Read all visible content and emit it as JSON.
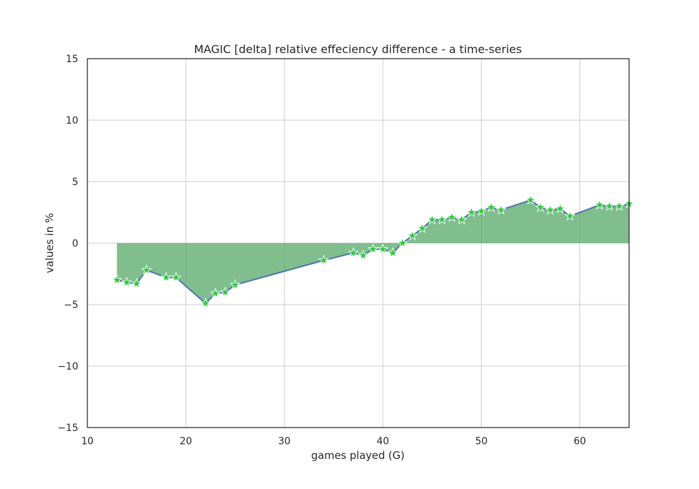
{
  "chart_data": {
    "type": "line",
    "title": "MAGIC [delta] relative effeciency difference - a time-series",
    "xlabel": "games played (G)",
    "ylabel": "values in %",
    "xlim": [
      10,
      65
    ],
    "ylim": [
      -15,
      15
    ],
    "x_ticks": [
      10,
      20,
      30,
      40,
      50,
      60
    ],
    "x_tick_labels": [
      "10",
      "20",
      "30",
      "40",
      "50",
      "60"
    ],
    "y_ticks": [
      -15,
      -10,
      -5,
      0,
      5,
      10,
      15
    ],
    "y_tick_labels": [
      "−15",
      "−10",
      "−5",
      "0",
      "5",
      "10",
      "15"
    ],
    "grid": true,
    "fill_to_zero": true,
    "colors": {
      "line": "#4c72b0",
      "fill": "#55a868",
      "marker": "#2ecc40",
      "marker_edge": "#ffffff",
      "grid": "#cccccc",
      "frame": "#262626"
    },
    "series": [
      {
        "x": [
          13,
          14,
          15,
          16,
          18,
          19,
          22,
          23,
          24,
          25,
          34,
          37,
          38,
          39,
          40,
          41,
          42,
          43,
          44,
          45,
          46,
          47,
          48,
          49,
          50,
          51,
          52,
          55,
          56,
          57,
          58,
          59,
          62,
          63,
          64,
          65
        ],
        "y": [
          -3.0,
          -3.2,
          -3.3,
          -2.2,
          -2.8,
          -2.8,
          -4.9,
          -4.1,
          -4.0,
          -3.4,
          -1.4,
          -0.8,
          -1.0,
          -0.5,
          -0.5,
          -0.8,
          0.0,
          0.6,
          1.2,
          1.9,
          1.9,
          2.1,
          1.9,
          2.5,
          2.6,
          2.9,
          2.7,
          3.5,
          2.9,
          2.7,
          2.8,
          2.2,
          3.1,
          3.0,
          3.0,
          3.2
        ]
      }
    ]
  }
}
